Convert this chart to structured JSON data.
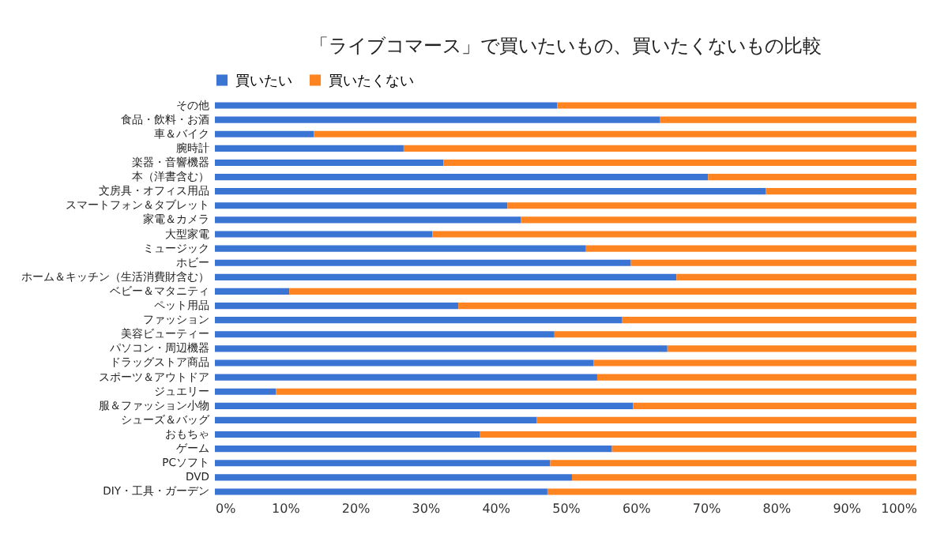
{
  "chart_data": {
    "type": "bar",
    "orientation": "horizontal",
    "stacked": true,
    "title": "「ライブコマース」で買いたいもの、買いたくないもの比較",
    "legend": "top",
    "categories": [
      "その他",
      "食品・飲料・お酒",
      "車＆バイク",
      "腕時計",
      "楽器・音響機器",
      "本（洋書含む）",
      "文房具・オフィス用品",
      "スマートフォン＆タブレット",
      "家電＆カメラ",
      "大型家電",
      "ミュージック",
      "ホビー",
      "ホーム＆キッチン（生活消費財含む）",
      "ベビー＆マタニティ",
      "ペット用品",
      "ファッション",
      "美容ビューティー",
      "パソコン・周辺機器",
      "ドラッグストア商品",
      "スポーツ＆アウトドア",
      "ジュエリー",
      "服＆ファッション小物",
      "シューズ＆バッグ",
      "おもちゃ",
      "ゲーム",
      "PCソフト",
      "DVD",
      "DIY・工具・ガーデン"
    ],
    "series": [
      {
        "name": "買いたい",
        "color": "#3b75d3",
        "values": [
          48.8,
          63.4,
          14.1,
          26.9,
          32.6,
          70.3,
          78.5,
          41.7,
          43.6,
          31.0,
          52.9,
          59.3,
          65.8,
          10.6,
          34.7,
          58.0,
          48.4,
          64.5,
          54.0,
          54.5,
          8.7,
          59.6,
          45.9,
          37.8,
          56.6,
          47.8,
          50.9,
          47.4
        ]
      },
      {
        "name": "買いたくない",
        "color": "#fd8421",
        "values": [
          51.2,
          36.6,
          85.9,
          73.1,
          67.4,
          29.7,
          21.5,
          58.3,
          56.4,
          69.0,
          47.1,
          40.7,
          34.2,
          89.4,
          65.3,
          42.0,
          51.6,
          35.5,
          46.0,
          45.5,
          91.3,
          40.4,
          54.1,
          62.2,
          43.4,
          52.2,
          49.1,
          52.6
        ]
      }
    ],
    "xlim": [
      0,
      100
    ],
    "xticks": [
      {
        "value": 0,
        "label": "0%"
      },
      {
        "value": 10,
        "label": "10%"
      },
      {
        "value": 20,
        "label": "20%"
      },
      {
        "value": 30,
        "label": "30%"
      },
      {
        "value": 40,
        "label": "40%"
      },
      {
        "value": 50,
        "label": "50%"
      },
      {
        "value": 60,
        "label": "60%"
      },
      {
        "value": 70,
        "label": "70%"
      },
      {
        "value": 80,
        "label": "80%"
      },
      {
        "value": 90,
        "label": "90%"
      },
      {
        "value": 100,
        "label": "100%"
      }
    ]
  }
}
